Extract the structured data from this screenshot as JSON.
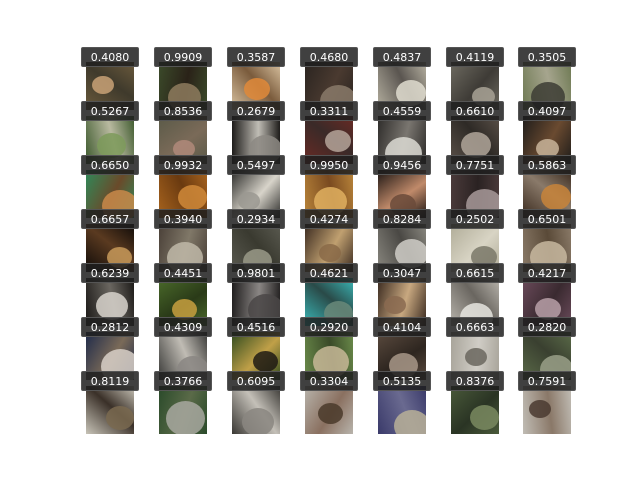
{
  "figure": {
    "scores": [
      [
        "0.4080",
        "0.9909",
        "0.3587",
        "0.4680",
        "0.4837",
        "0.4119",
        "0.3505"
      ],
      [
        "0.5267",
        "0.8536",
        "0.2679",
        "0.3311",
        "0.4559",
        "0.6610",
        "0.4097"
      ],
      [
        "0.6650",
        "0.9932",
        "0.5497",
        "0.9950",
        "0.9456",
        "0.7751",
        "0.5863"
      ],
      [
        "0.6657",
        "0.3940",
        "0.2934",
        "0.4274",
        "0.8284",
        "0.2502",
        "0.6501"
      ],
      [
        "0.6239",
        "0.4451",
        "0.9801",
        "0.4621",
        "0.3047",
        "0.6615",
        "0.4217"
      ],
      [
        "0.2812",
        "0.4309",
        "0.4516",
        "0.2920",
        "0.4104",
        "0.6663",
        "0.2820"
      ],
      [
        "0.8119",
        "0.3766",
        "0.6095",
        "0.3304",
        "0.5135",
        "0.8376",
        "0.7591"
      ]
    ],
    "thumbnail_palettes": [
      [
        [
          "#6b5a3c",
          "#c9a277",
          "#3f3a2c"
        ],
        [
          "#3b4a2a",
          "#8e7b5e",
          "#2a2218"
        ],
        [
          "#d9c2a0",
          "#e08a3a",
          "#7a5b3c"
        ],
        [
          "#2a2420",
          "#8a7a6a",
          "#4a3a30"
        ],
        [
          "#b5b0a0",
          "#e0ddd0",
          "#5a5550"
        ],
        [
          "#6d6a60",
          "#a8a295",
          "#3e3b36"
        ],
        [
          "#6f7a54",
          "#3c3c34",
          "#a6a58e"
        ]
      ],
      [
        [
          "#3e5a2e",
          "#7d9a5a",
          "#b9b9a0"
        ],
        [
          "#5a5a48",
          "#b08a7a",
          "#7a6a58"
        ],
        [
          "#1e1c1a",
          "#8c8882",
          "#c0bdb5"
        ],
        [
          "#6a2a24",
          "#b5a49a",
          "#3a2a28"
        ],
        [
          "#2e2c2a",
          "#dcdad4",
          "#7a7670"
        ],
        [
          "#5a5048",
          "#b0a69a",
          "#2e2a26"
        ],
        [
          "#1e1c1a",
          "#c8b49a",
          "#6a4a30"
        ]
      ],
      [
        [
          "#2e8a5a",
          "#c98a4a",
          "#6a4a2a"
        ],
        [
          "#a8641e",
          "#d08a3a",
          "#6a3a10"
        ],
        [
          "#2a2a28",
          "#9a9890",
          "#d8d4ca"
        ],
        [
          "#b8843a",
          "#e0b060",
          "#7a4a20"
        ],
        [
          "#1a1412",
          "#6a4a3a",
          "#c08a6a"
        ],
        [
          "#4a3a3a",
          "#a89a9a",
          "#2a2222"
        ],
        [
          "#3a2a1e",
          "#c8843a",
          "#8a7a6a"
        ]
      ],
      [
        [
          "#0e0a08",
          "#c89a5a",
          "#5a3a20"
        ],
        [
          "#4a4038",
          "#c0b8a8",
          "#807868"
        ],
        [
          "#5a5a50",
          "#9a9a88",
          "#3a3a30"
        ],
        [
          "#3a2a20",
          "#8a6a48",
          "#c0a070"
        ],
        [
          "#8a8880",
          "#d0cec8",
          "#4a4844"
        ],
        [
          "#b0ac98",
          "#7a7868",
          "#d8d4c4"
        ],
        [
          "#8a7a68",
          "#c8b8a0",
          "#5a4a38"
        ]
      ],
      [
        [
          "#1a1816",
          "#d8d4cc",
          "#6a6660"
        ],
        [
          "#4a6a2a",
          "#c8a040",
          "#2a3a18"
        ],
        [
          "#1e1c1c",
          "#4a4646",
          "#8a8684"
        ],
        [
          "#3ab8b8",
          "#6a8a7a",
          "#2a4a48"
        ],
        [
          "#3a2a20",
          "#8a6a50",
          "#c8a880"
        ],
        [
          "#b8b4ac",
          "#e8e6e0",
          "#6a6660"
        ],
        [
          "#6a4a5a",
          "#b8a0a8",
          "#3a2a30"
        ]
      ],
      [
        [
          "#1e2a4a",
          "#d8d0c8",
          "#7a6a58"
        ],
        [
          "#3a3a38",
          "#8a8682",
          "#c0bcb4"
        ],
        [
          "#2e4a1e",
          "#1e1a14",
          "#c0a048"
        ],
        [
          "#6a8a4a",
          "#c8b898",
          "#3a4a28"
        ],
        [
          "#5a4a3e",
          "#a89888",
          "#2e2620"
        ],
        [
          "#a8a49a",
          "#6a665e",
          "#d0cdc6"
        ],
        [
          "#5a6a48",
          "#9aa088",
          "#3a4030"
        ]
      ],
      [
        [
          "#c8c4b8",
          "#7a6a50",
          "#3a3028"
        ],
        [
          "#2a4a2a",
          "#a8a8a0",
          "#5a6a48"
        ],
        [
          "#3a3834",
          "#8a8680",
          "#c4c0b8"
        ],
        [
          "#b8b4ac",
          "#4a3a2a",
          "#8a7060"
        ],
        [
          "#3a3a6a",
          "#b8b098",
          "#6a6a90"
        ],
        [
          "#4a5a3a",
          "#7a8a60",
          "#2a3424"
        ],
        [
          "#c0bcb4",
          "#4a3a30",
          "#8a7868"
        ]
      ]
    ]
  }
}
